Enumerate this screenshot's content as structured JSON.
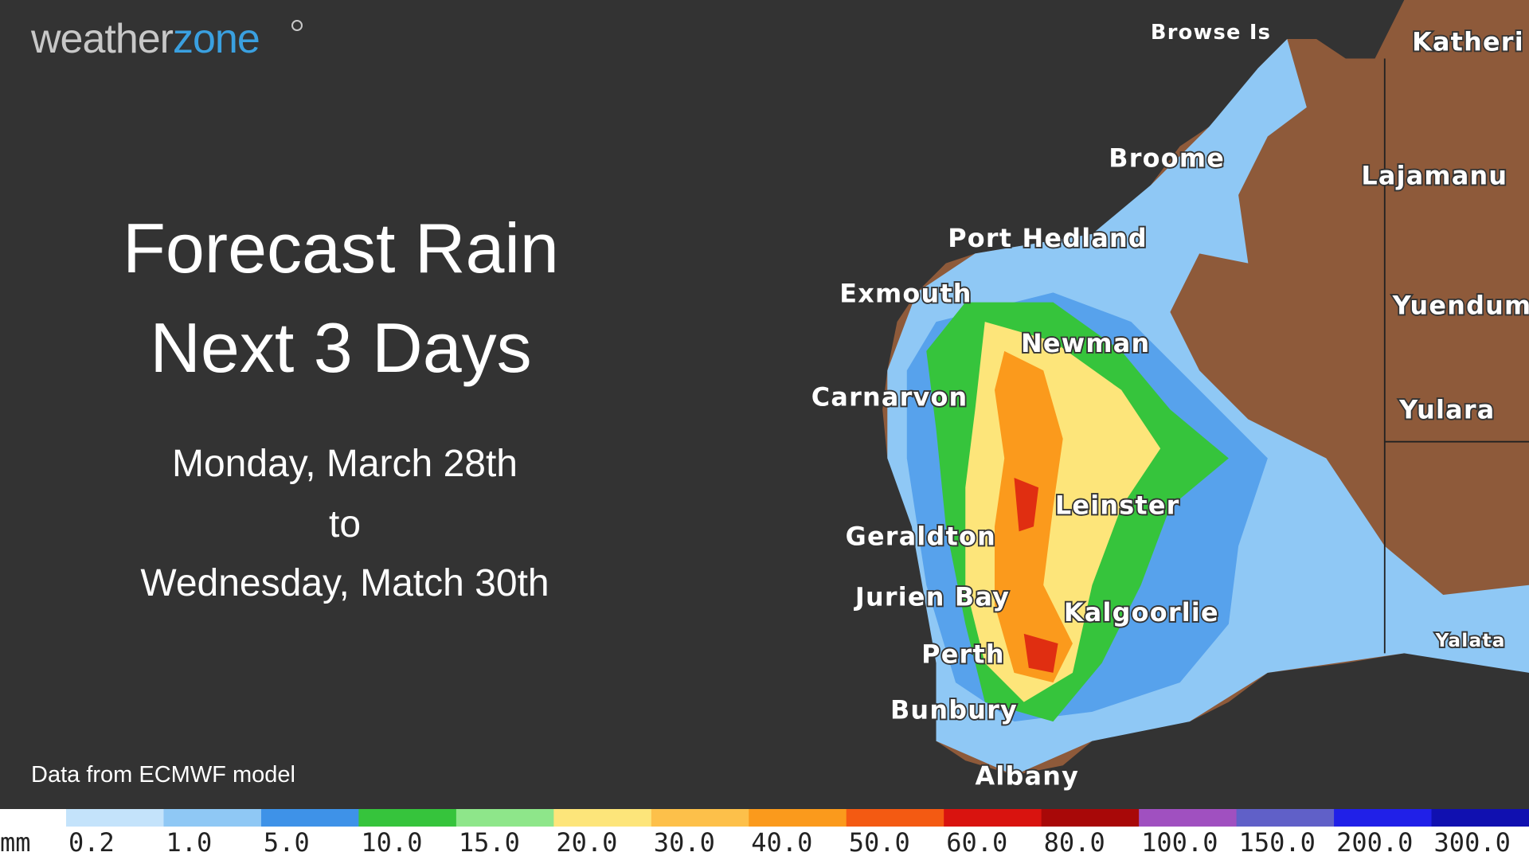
{
  "logo": {
    "part1": "weather",
    "part2": "zone"
  },
  "title": {
    "line1": "Forecast Rain",
    "line2": "Next 3 Days"
  },
  "dates": [
    "Monday, March 28th",
    "to",
    "Wednesday, Match 30th"
  ],
  "source": "Data from ECMWF model",
  "map": {
    "places": [
      "Browse Is",
      "Katheri",
      "Broome",
      "Lajamanu",
      "Port Hedland",
      "Exmouth",
      "Yuendum",
      "Newman",
      "Carnarvon",
      "Yulara",
      "Leinster",
      "Geraldton",
      "Jurien Bay",
      "Kalgoorlie",
      "Perth",
      "Bunbury",
      "Albany",
      "Yalata"
    ]
  },
  "legend": {
    "unit": "mm",
    "items": [
      {
        "label": "0.2",
        "color": "#c4e3fb"
      },
      {
        "label": "1.0",
        "color": "#8fc8f5"
      },
      {
        "label": "5.0",
        "color": "#3e92e8"
      },
      {
        "label": "10.0",
        "color": "#36c43c"
      },
      {
        "label": "15.0",
        "color": "#8ee68a"
      },
      {
        "label": "20.0",
        "color": "#fde57a"
      },
      {
        "label": "30.0",
        "color": "#fdc04a"
      },
      {
        "label": "40.0",
        "color": "#fb9a1c"
      },
      {
        "label": "50.0",
        "color": "#f45a12"
      },
      {
        "label": "60.0",
        "color": "#d9130f"
      },
      {
        "label": "80.0",
        "color": "#a80808"
      },
      {
        "label": "100.0",
        "color": "#a050c0"
      },
      {
        "label": "150.0",
        "color": "#6060c8"
      },
      {
        "label": "200.0",
        "color": "#2020e8"
      },
      {
        "label": "300.0",
        "color": "#1010b0"
      }
    ]
  }
}
